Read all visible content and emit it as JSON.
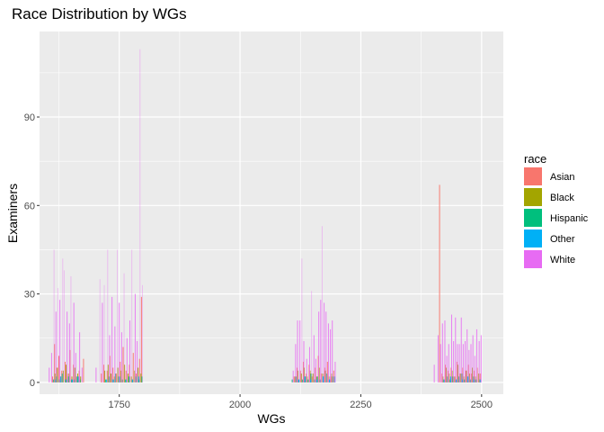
{
  "chart_data": {
    "type": "bar",
    "title": "Race Distribution by WGs",
    "xlabel": "WGs",
    "ylabel": "Examiners",
    "xlim": [
      1585,
      2545
    ],
    "ylim": [
      -4,
      119
    ],
    "xticks": [
      1750,
      2000,
      2250,
      2500
    ],
    "yticks": [
      0,
      30,
      60,
      90
    ],
    "xtick_labels": [
      "1750",
      "2000",
      "2250",
      "2500"
    ],
    "ytick_labels": [
      "0",
      "30",
      "60",
      "90"
    ],
    "grid": true,
    "bar_width": 1.6,
    "legend": {
      "title": "race",
      "position": "right",
      "entries": [
        "Asian",
        "Black",
        "Hispanic",
        "Other",
        "White"
      ]
    },
    "series": [
      {
        "name": "Asian",
        "color": "#F8766D",
        "x": [
          1612,
          1616,
          1621,
          1625,
          1631,
          1638,
          1643,
          1648,
          1655,
          1661,
          1667,
          1676,
          1713,
          1718,
          1725,
          1731,
          1737,
          1744,
          1752,
          1758,
          1764,
          1771,
          1779,
          1785,
          1792,
          1796,
          2112,
          2118,
          2125,
          2131,
          2137,
          2143,
          2149,
          2156,
          2162,
          2168,
          2175,
          2181,
          2188,
          2194,
          2413,
          2418,
          2425,
          2431,
          2437,
          2443,
          2449,
          2455,
          2461,
          2467,
          2473,
          2479,
          2485,
          2491,
          2497
        ],
        "values": [
          2,
          13,
          5,
          9,
          4,
          7,
          3,
          11,
          6,
          2,
          4,
          8,
          3,
          6,
          4,
          9,
          5,
          3,
          7,
          12,
          4,
          6,
          10,
          3,
          8,
          29,
          2,
          5,
          4,
          7,
          3,
          6,
          2,
          5,
          9,
          3,
          5,
          7,
          2,
          4,
          67,
          3,
          6,
          4,
          5,
          2,
          7,
          3,
          5,
          4,
          6,
          3,
          4,
          5,
          3
        ]
      },
      {
        "name": "Black",
        "color": "#A3A500",
        "x": [
          1617,
          1622,
          1628,
          1634,
          1640,
          1646,
          1652,
          1658,
          1664,
          1670,
          1720,
          1727,
          1733,
          1740,
          1747,
          1754,
          1761,
          1768,
          1775,
          1782,
          1789,
          1795,
          2114,
          2120,
          2127,
          2133,
          2139,
          2145,
          2151,
          2158,
          2164,
          2171,
          2177,
          2184,
          2190,
          2420,
          2427,
          2433,
          2439,
          2445,
          2451,
          2457,
          2463,
          2469,
          2475,
          2481,
          2487,
          2494
        ],
        "values": [
          3,
          5,
          2,
          4,
          6,
          3,
          2,
          5,
          3,
          2,
          4,
          6,
          3,
          2,
          5,
          4,
          6,
          3,
          2,
          4,
          5,
          3,
          2,
          4,
          3,
          5,
          2,
          4,
          3,
          2,
          5,
          3,
          4,
          2,
          3,
          2,
          5,
          3,
          4,
          2,
          6,
          3,
          2,
          4,
          3,
          5,
          2,
          3
        ]
      },
      {
        "name": "Hispanic",
        "color": "#00BF7D",
        "x": [
          1614,
          1620,
          1626,
          1632,
          1639,
          1645,
          1651,
          1657,
          1663,
          1669,
          1722,
          1729,
          1736,
          1742,
          1749,
          1756,
          1763,
          1770,
          1777,
          1784,
          1791,
          1797,
          2108,
          2116,
          2122,
          2129,
          2135,
          2141,
          2147,
          2154,
          2160,
          2166,
          2173,
          2179,
          2186,
          2192,
          2422,
          2429,
          2435,
          2441,
          2447,
          2453,
          2459,
          2465,
          2471,
          2477,
          2483,
          2489,
          2496
        ],
        "values": [
          1,
          2,
          1,
          3,
          1,
          2,
          1,
          1,
          2,
          1,
          1,
          2,
          1,
          3,
          2,
          1,
          1,
          2,
          1,
          2,
          1,
          2,
          1,
          2,
          1,
          1,
          2,
          1,
          3,
          1,
          2,
          1,
          2,
          3,
          1,
          2,
          1,
          2,
          1,
          2,
          1,
          2,
          3,
          1,
          2,
          1,
          2,
          1,
          1
        ]
      },
      {
        "name": "Other",
        "color": "#00B0F6",
        "x": [
          1618,
          1629,
          1641,
          1653,
          1665,
          1724,
          1738,
          1751,
          1765,
          1778,
          1790,
          2121,
          2134,
          2146,
          2159,
          2172,
          2185,
          2196,
          2423,
          2436,
          2448,
          2460,
          2472,
          2484,
          2498
        ],
        "values": [
          1,
          2,
          1,
          1,
          2,
          1,
          1,
          2,
          1,
          1,
          2,
          1,
          2,
          1,
          1,
          2,
          1,
          2,
          1,
          2,
          1,
          1,
          2,
          1,
          1
        ]
      },
      {
        "name": "White",
        "color": "#E76BF3",
        "x": [
          1605,
          1610,
          1615,
          1619,
          1623,
          1627,
          1633,
          1636,
          1642,
          1647,
          1650,
          1656,
          1660,
          1668,
          1673,
          1702,
          1710,
          1715,
          1719,
          1726,
          1730,
          1735,
          1741,
          1746,
          1750,
          1755,
          1760,
          1766,
          1772,
          1776,
          1783,
          1787,
          1793,
          1798,
          2110,
          2115,
          2119,
          2124,
          2128,
          2132,
          2138,
          2144,
          2148,
          2153,
          2157,
          2163,
          2167,
          2170,
          2174,
          2178,
          2183,
          2187,
          2191,
          2197,
          2402,
          2410,
          2415,
          2419,
          2424,
          2428,
          2432,
          2438,
          2442,
          2446,
          2450,
          2454,
          2458,
          2462,
          2466,
          2470,
          2474,
          2478,
          2482,
          2486,
          2490,
          2495,
          2499
        ],
        "values": [
          5,
          10,
          45,
          24,
          32,
          28,
          42,
          38,
          24,
          20,
          36,
          27,
          10,
          17,
          5,
          5,
          35,
          27,
          33,
          45,
          16,
          29,
          19,
          45,
          27,
          17,
          37,
          15,
          21,
          45,
          30,
          14,
          113,
          33,
          4,
          13,
          21,
          21,
          42,
          14,
          8,
          12,
          31,
          16,
          8,
          24,
          28,
          53,
          27,
          24,
          20,
          18,
          21,
          7,
          6,
          16,
          13,
          20,
          21,
          9,
          13,
          23,
          14,
          22,
          13,
          13,
          22,
          13,
          14,
          18,
          11,
          13,
          16,
          9,
          18,
          14,
          16
        ]
      }
    ]
  }
}
